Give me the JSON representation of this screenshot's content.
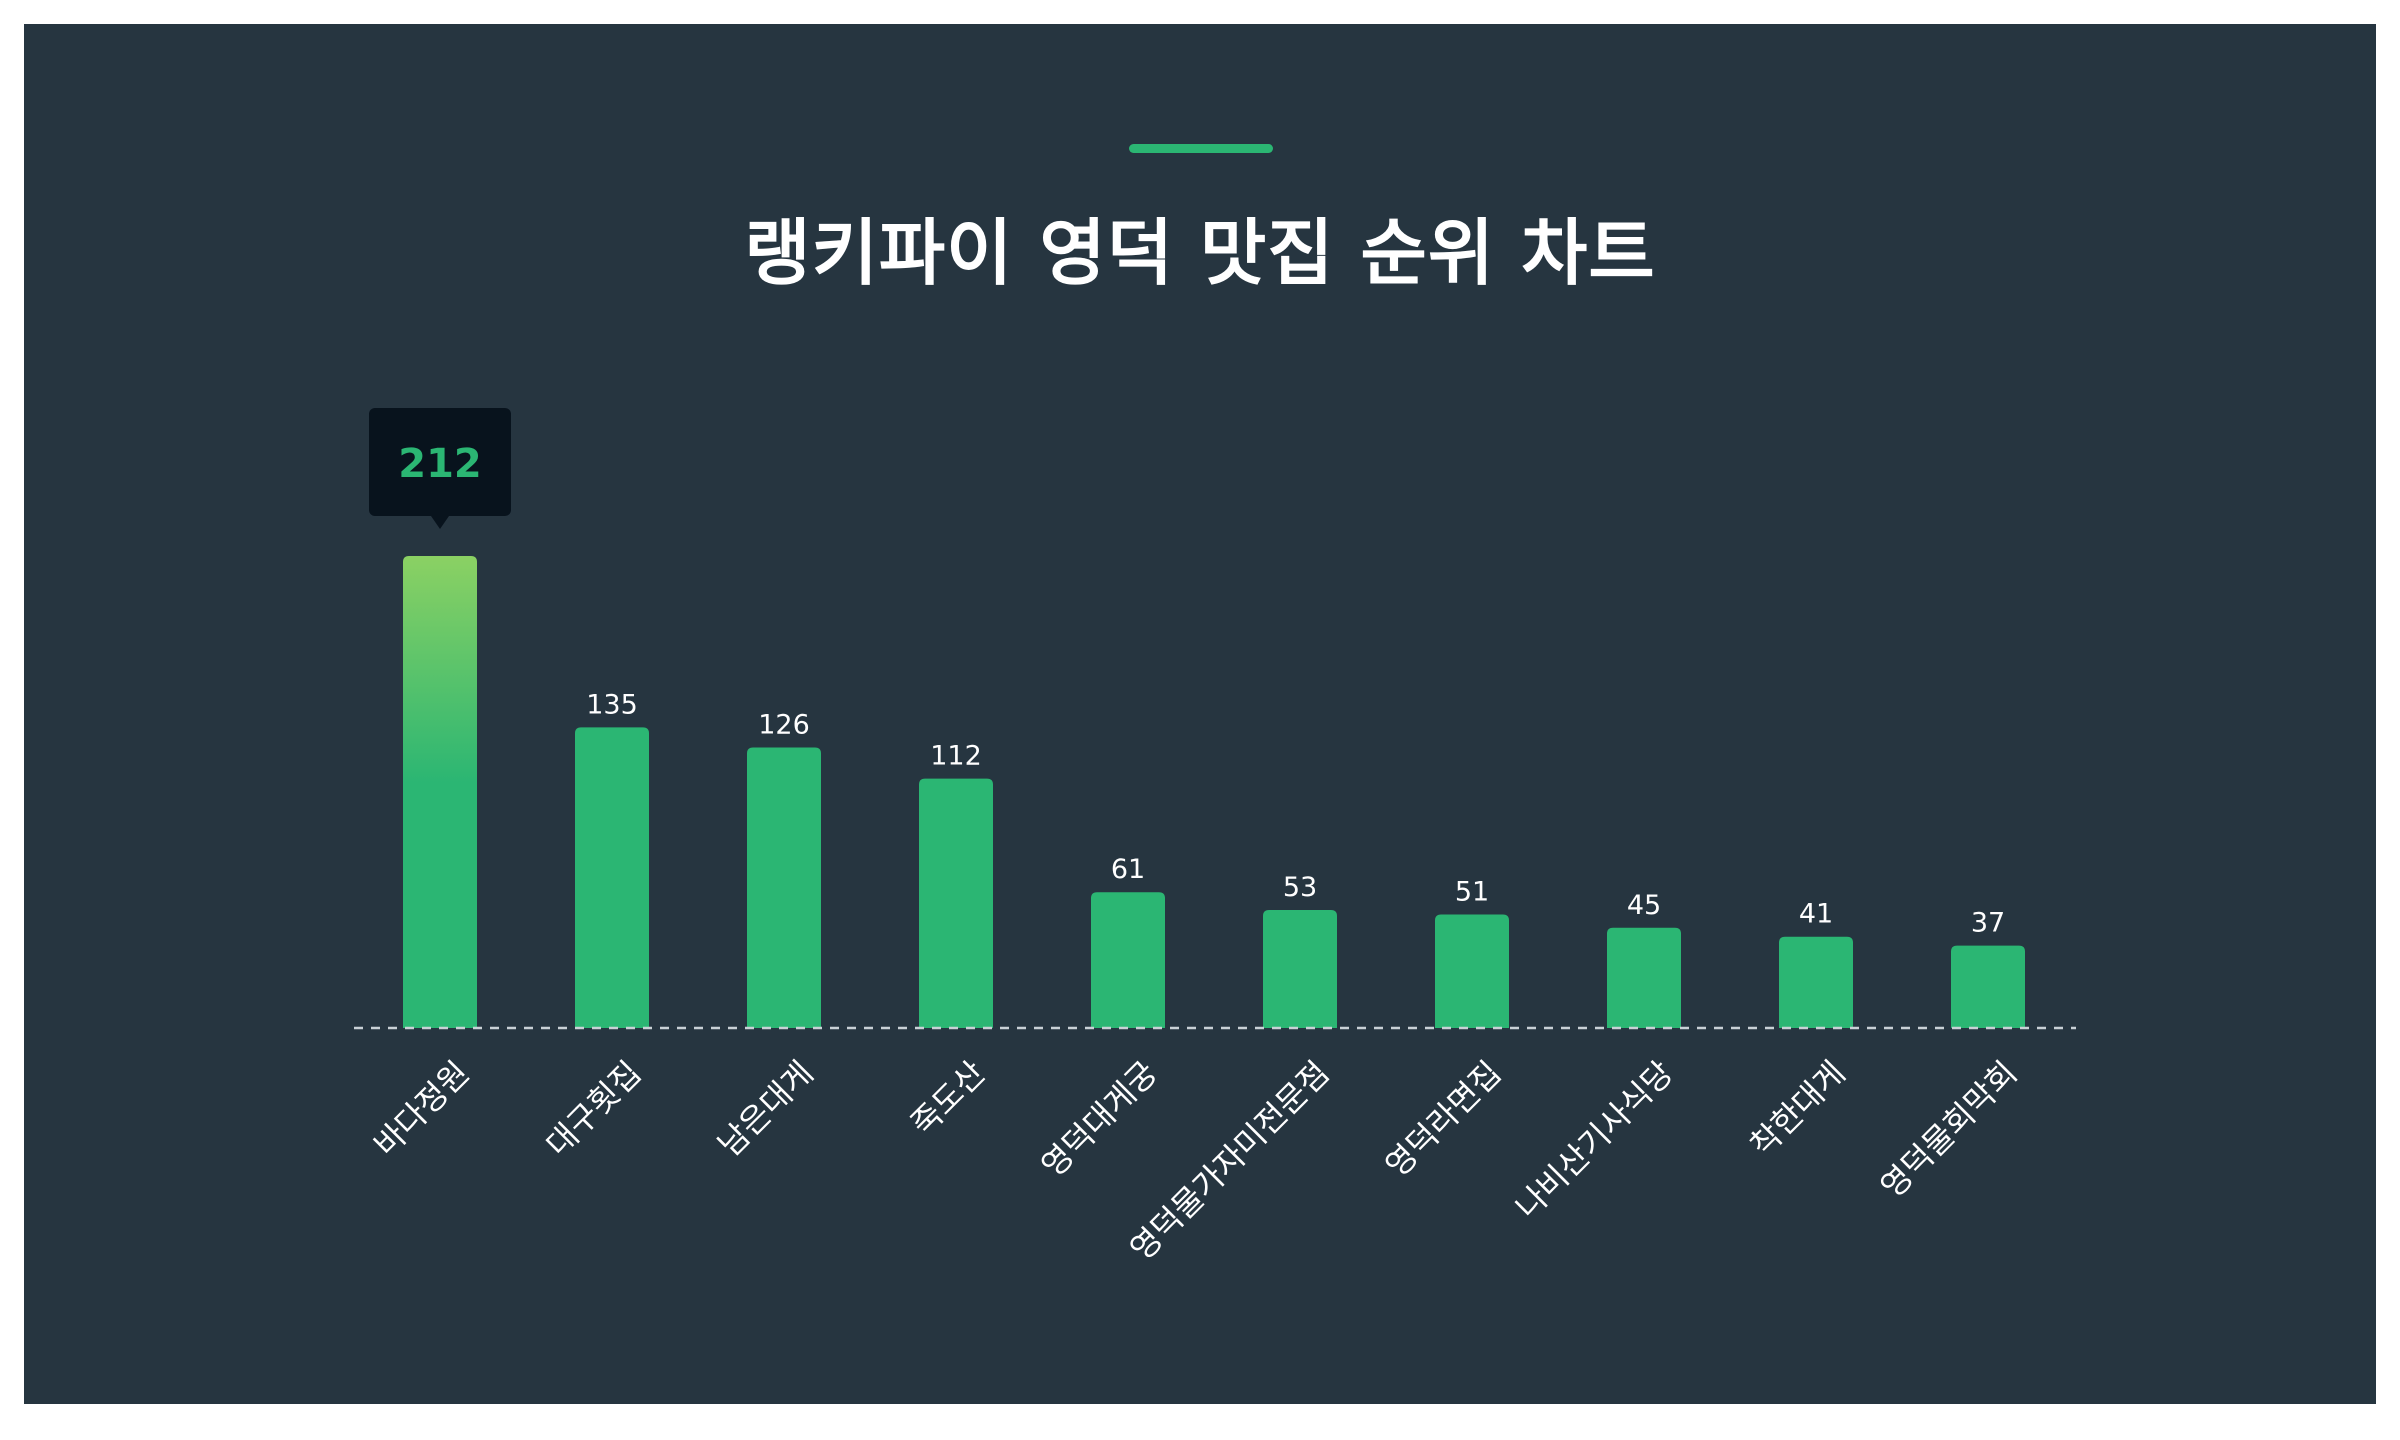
{
  "title": "랭키파이 영덕 맛집 순위 차트",
  "colors": {
    "panel": "#263540",
    "bar": "#2bb673",
    "bar_top_gradient": "#8bd163",
    "accent": "#2bb673",
    "tooltip_bg": "#08131d",
    "text": "#ffffff",
    "baseline": "#c9d1d6"
  },
  "chart_data": {
    "type": "bar",
    "title": "랭키파이 영덕 맛집 순위 차트",
    "xlabel": "",
    "ylabel": "",
    "categories": [
      "바다정원",
      "대구횟집",
      "남은대게",
      "죽도산",
      "영덕대게궁",
      "영덕물가자미전문점",
      "영덕라면집",
      "나비산기사식당",
      "착한대게",
      "영덕물회막회"
    ],
    "values": [
      212,
      135,
      126,
      112,
      61,
      53,
      51,
      45,
      41,
      37
    ],
    "ylim": [
      0,
      212
    ],
    "grid": false,
    "legend": "none",
    "highlight": {
      "index": 0,
      "label": "212"
    }
  }
}
